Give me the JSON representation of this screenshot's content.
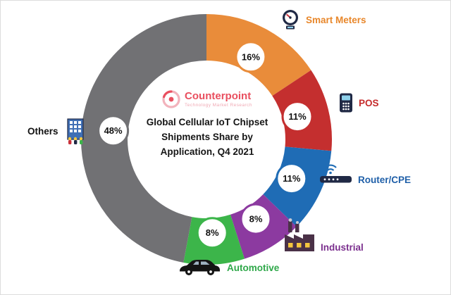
{
  "chart_data": {
    "type": "pie",
    "donut": true,
    "title": "Global Cellular IoT Chipset Shipments Share by Application, Q4 2021",
    "center_title_lines": [
      "Global Cellular IoT Chipset",
      "Shipments Share by",
      "Application, Q4 2021"
    ],
    "units": "%",
    "direction": "clockwise",
    "start_angle_deg": 0,
    "legend_position": "around",
    "categories": [
      "Smart Meters",
      "POS",
      "Router/CPE",
      "Industrial",
      "Automotive",
      "Others"
    ],
    "values": [
      16,
      11,
      11,
      8,
      8,
      48
    ],
    "segments": [
      {
        "label": "Smart Meters",
        "value": 16,
        "pct_label": "16%",
        "color": "#E98C3A",
        "label_color": "#E8872B",
        "icon": "smart-meter-icon"
      },
      {
        "label": "POS",
        "value": 11,
        "pct_label": "11%",
        "color": "#C42F2F",
        "label_color": "#C52B2B",
        "icon": "pos-terminal-icon"
      },
      {
        "label": "Router/CPE",
        "value": 11,
        "pct_label": "11%",
        "color": "#1F6CB5",
        "label_color": "#1F5FA8",
        "icon": "router-icon"
      },
      {
        "label": "Industrial",
        "value": 8,
        "pct_label": "8%",
        "color": "#8C3AA0",
        "label_color": "#7B2F8E",
        "icon": "factory-icon"
      },
      {
        "label": "Automotive",
        "value": 8,
        "pct_label": "8%",
        "color": "#3CB54A",
        "label_color": "#2FA84A",
        "icon": "car-icon"
      },
      {
        "label": "Others",
        "value": 48,
        "pct_label": "48%",
        "color": "#717174",
        "label_color": "#111111",
        "icon": "building-icon"
      }
    ]
  },
  "logo": {
    "brand": "Counterpoint",
    "tagline": "Technology Market Research",
    "brand_color": "#E94F5F"
  }
}
